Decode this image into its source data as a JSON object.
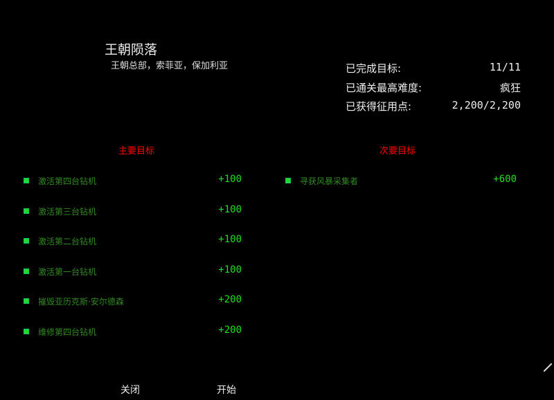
{
  "mission": {
    "title": "王朝陨落",
    "location": "王朝总部，索菲亚，保加利亚"
  },
  "stats": [
    {
      "label": "已完成目标:",
      "value": "11/11"
    },
    {
      "label": "已通关最高难度:",
      "value": "疯狂"
    },
    {
      "label": "已获得征用点:",
      "value": "2,200/2,200"
    }
  ],
  "primary": {
    "heading": "主要目标",
    "items": [
      {
        "label": "激活第四台钻机",
        "points": "+100"
      },
      {
        "label": "激活第三台钻机",
        "points": "+100"
      },
      {
        "label": "激活第二台钻机",
        "points": "+100"
      },
      {
        "label": "激活第一台钻机",
        "points": "+100"
      },
      {
        "label": "摧毁亚历克斯·安尔德森",
        "points": "+200"
      },
      {
        "label": "维修第四台钻机",
        "points": "+200"
      }
    ]
  },
  "secondary": {
    "heading": "次要目标",
    "items": [
      {
        "label": "寻获风暴采集者",
        "points": "+600"
      }
    ]
  },
  "buttons": {
    "close": "关闭",
    "start": "开始"
  },
  "colors": {
    "heading": "#ff0000",
    "objective": "#2f8a1f",
    "points": "#1fe01f",
    "background": "#000000"
  }
}
